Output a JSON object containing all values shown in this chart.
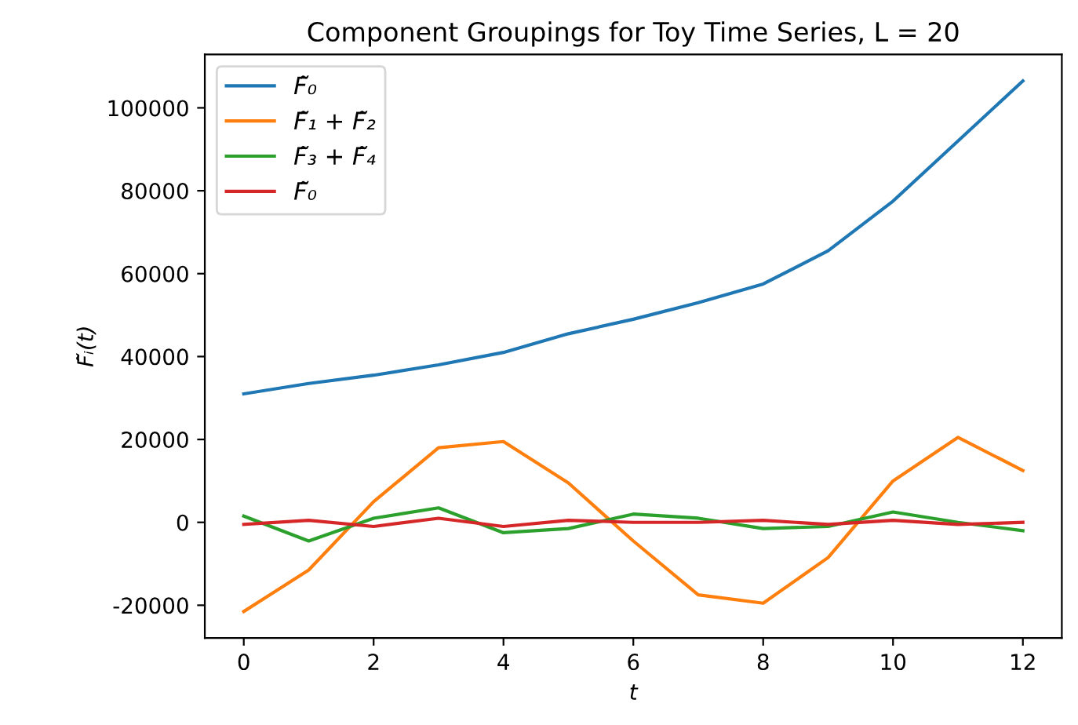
{
  "chart_data": {
    "type": "line",
    "title": "Component Groupings for Toy Time Series, L = 20",
    "xlabel": "t",
    "ylabel": "F̃ᵢ(t)",
    "x": [
      0,
      1,
      2,
      3,
      4,
      5,
      6,
      7,
      8,
      9,
      10,
      11,
      12
    ],
    "series": [
      {
        "name": "F̃₀",
        "color": "#1f77b4",
        "values": [
          31000,
          33500,
          35500,
          38000,
          41000,
          45500,
          49000,
          53000,
          57500,
          65500,
          77500,
          92000,
          106500
        ]
      },
      {
        "name": "F̃₁ + F̃₂",
        "color": "#ff7f0e",
        "values": [
          -21500,
          -11500,
          5000,
          18000,
          19500,
          9500,
          -4500,
          -17500,
          -19500,
          -8500,
          10000,
          20500,
          12500
        ]
      },
      {
        "name": "F̃₃ + F̃₄",
        "color": "#2ca02c",
        "values": [
          1500,
          -4500,
          1000,
          3500,
          -2500,
          -1500,
          2000,
          1000,
          -1500,
          -1000,
          2500,
          0,
          -2000
        ]
      },
      {
        "name": "F̃₀",
        "color": "#d62728",
        "values": [
          -500,
          500,
          -1000,
          1000,
          -1000,
          500,
          0,
          0,
          500,
          -500,
          500,
          -500,
          0
        ]
      }
    ],
    "xlim": [
      -0.6,
      12.6
    ],
    "ylim": [
      -27900,
      112900
    ],
    "xticks": [
      0,
      2,
      4,
      6,
      8,
      10,
      12
    ],
    "yticks": [
      -20000,
      0,
      20000,
      40000,
      60000,
      80000,
      100000
    ],
    "legend": "top left",
    "grid": false,
    "marker": "none",
    "line_style": "solid"
  }
}
